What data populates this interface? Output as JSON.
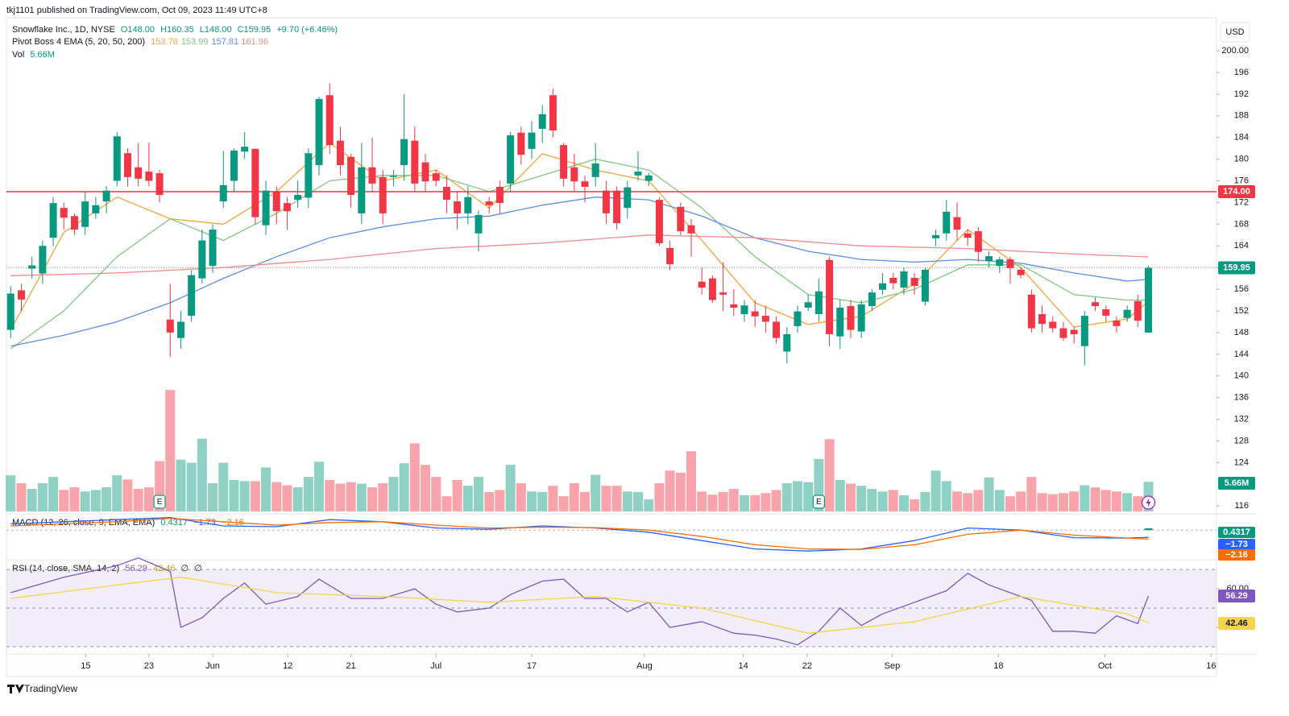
{
  "chart_data": {
    "type": "candlestick",
    "published": "tkj1101 published on TradingView.com, Oct 09, 2023 11:49 UTC+8",
    "symbol": "Snowflake Inc., 1D, NYSE",
    "ohlc_labels": [
      "O148.00",
      "H160.35",
      "L148.00",
      "C159.95"
    ],
    "change_label": "+9.70 (+6.46%)",
    "currency": "USD",
    "brand": "TradingView",
    "up_color": "#089981",
    "down_color": "#f23645",
    "xlim": [
      -0.4,
      113.4
    ],
    "xticks": [
      {
        "value": 7.05,
        "label": "15"
      },
      {
        "value": 13,
        "label": "23"
      },
      {
        "value": 19,
        "label": "Jun"
      },
      {
        "value": 26.06,
        "label": "12"
      },
      {
        "value": 32,
        "label": "21"
      },
      {
        "value": 40,
        "label": "Jul"
      },
      {
        "value": 49,
        "label": "17"
      },
      {
        "value": 59.6,
        "label": "Aug"
      },
      {
        "value": 68.9,
        "label": "14"
      },
      {
        "value": 74.9,
        "label": "22"
      },
      {
        "value": 82.9,
        "label": "Sep"
      },
      {
        "value": 92.9,
        "label": "18"
      },
      {
        "value": 102.9,
        "label": "Oct"
      },
      {
        "value": 112.9,
        "label": "16"
      }
    ],
    "ylim": [
      114.7,
      206.1
    ],
    "yticks": [
      116,
      124,
      128,
      132,
      136,
      140,
      144,
      148,
      152,
      156,
      160,
      164,
      168,
      172,
      176,
      180,
      184,
      188,
      192,
      196,
      {
        "value": 200,
        "label": "200.00"
      }
    ],
    "open": [
      148.5,
      155.8,
      159.8,
      158.9,
      165.5,
      171,
      169.5,
      167.5,
      170,
      172.2,
      176,
      181.1,
      178.5,
      177.7,
      177.4,
      150.4,
      147,
      151.1,
      158,
      160.3,
      172.2,
      176,
      181.4,
      181.9,
      167.8,
      174,
      171.9,
      172.5,
      172.9,
      178.9,
      191.8,
      183.4,
      180.4,
      170,
      178.5,
      176.7,
      176.7,
      178.9,
      183.4,
      179.4,
      177.4,
      174.9,
      172.2,
      170,
      166.3,
      172.2,
      174.9,
      175.5,
      184.9,
      181.9,
      185.6,
      191.8,
      182.6,
      178.5,
      175.9,
      176.7,
      174.2,
      174.2,
      171,
      177,
      176,
      172.5,
      163.6,
      171.2,
      167.8,
      157.4,
      158,
      155.4,
      153.2,
      151.4,
      151.9,
      151.1,
      150,
      144.5,
      149.2,
      152.6,
      151.4,
      161.4,
      147.3,
      152.9,
      148.2,
      152.9,
      155.9,
      158.1,
      156.3,
      158.1,
      153.7,
      165.4,
      166.3,
      169.3,
      166.3,
      166.7,
      161.2,
      160.3,
      161.5,
      159.6,
      155,
      151.4,
      150,
      148.8,
      148.5,
      145.5,
      153.6,
      152.3,
      150.2,
      150.7,
      153.8,
      148
    ],
    "high": [
      156.6,
      157,
      162,
      165,
      173,
      172,
      170,
      174,
      173,
      175,
      185,
      182,
      183,
      183,
      178,
      157,
      152,
      159.5,
      167,
      168,
      181.5,
      182,
      185,
      182,
      176,
      175,
      173,
      176,
      182,
      191.5,
      194,
      186,
      181,
      183,
      184,
      178,
      178,
      192,
      186,
      181,
      178,
      177,
      174,
      175,
      170.5,
      173,
      176,
      185,
      186,
      187,
      190,
      193,
      183,
      181,
      177,
      183,
      176,
      175,
      176,
      181.5,
      177.5,
      173,
      165,
      172,
      169,
      160,
      158.5,
      161,
      156,
      154,
      154,
      153,
      151,
      149,
      153,
      155,
      158,
      162,
      154,
      154,
      154,
      156,
      159,
      159,
      160,
      159,
      160,
      167,
      172.5,
      172,
      167,
      167.5,
      163,
      162,
      162,
      160,
      156,
      153,
      151,
      150,
      149,
      152,
      154.5,
      153,
      151,
      153,
      155,
      160.35
    ],
    "low": [
      147,
      152,
      158,
      157,
      164,
      167,
      166,
      166,
      169,
      170,
      175,
      175,
      175,
      175,
      172,
      143.5,
      145,
      150,
      157,
      159,
      171,
      174,
      180,
      168,
      166,
      168,
      167,
      171,
      171,
      177,
      181,
      177,
      171,
      168,
      174,
      168,
      175,
      176,
      174,
      174,
      175,
      170,
      167,
      168,
      163,
      170,
      170,
      174,
      179,
      180,
      183,
      184,
      175,
      174,
      172,
      175,
      168,
      167,
      169,
      176,
      175,
      164,
      159.5,
      166,
      162,
      155,
      153.5,
      152,
      151,
      150,
      149,
      148,
      146,
      142.3,
      148,
      152,
      150,
      145.5,
      145,
      147,
      147,
      152,
      155,
      156,
      155,
      155,
      153,
      164,
      165,
      165,
      164,
      161,
      160,
      159,
      157,
      158,
      148,
      148,
      148,
      146.5,
      146,
      142,
      152,
      150,
      148,
      150,
      149,
      148
    ],
    "close": [
      155.2,
      154.1,
      160.4,
      164,
      171.9,
      169.2,
      167,
      172.2,
      171.5,
      174.2,
      184.2,
      176.7,
      176.4,
      176,
      173.4,
      148,
      150,
      158.6,
      165,
      167,
      175.2,
      181.6,
      182.3,
      169.3,
      174.2,
      170.4,
      170.4,
      173.4,
      181.1,
      191.1,
      182.6,
      178.9,
      173.4,
      178.5,
      175.5,
      170,
      176.9,
      183.7,
      175.5,
      175.9,
      176,
      172.5,
      170,
      173,
      169.7,
      171.5,
      171.9,
      184.4,
      180.8,
      184.9,
      188.3,
      185.3,
      176.4,
      175.9,
      174.9,
      179.2,
      170,
      168.2,
      174.8,
      177.7,
      177,
      164.5,
      160.6,
      166.7,
      166.3,
      156.3,
      154,
      155,
      152.6,
      153,
      151,
      150,
      147,
      147.7,
      151.9,
      153.6,
      155.6,
      147.7,
      152.6,
      148.5,
      153.2,
      155.4,
      157.1,
      157.1,
      159.3,
      156.6,
      159.6,
      166,
      170.3,
      167,
      165.5,
      162.9,
      162.1,
      161.5,
      159.9,
      158.6,
      148.8,
      149.6,
      148.8,
      147,
      147.7,
      151.1,
      152.9,
      151.1,
      149.2,
      152.2,
      150.2,
      159.95
    ],
    "last_price_label": "159.95",
    "volume_title": "Vol",
    "volume_label": "5.66M",
    "volume": [
      6.9,
      5.4,
      4.3,
      5.4,
      6.6,
      4.1,
      4.6,
      3.8,
      4.1,
      4.6,
      6.9,
      6.1,
      4.3,
      4.6,
      9.6,
      23.2,
      9.9,
      9.3,
      13.9,
      5.4,
      9.3,
      6.0,
      5.8,
      5.8,
      8.4,
      5.6,
      5.0,
      4.6,
      6.6,
      9.5,
      6.0,
      5.3,
      5.6,
      5.3,
      4.6,
      5.4,
      6.6,
      9.2,
      13.0,
      8.9,
      6.6,
      2.9,
      6.0,
      4.9,
      6.6,
      3.7,
      4.1,
      8.9,
      5.4,
      3.8,
      3.7,
      4.9,
      2.9,
      5.4,
      3.7,
      7.0,
      4.9,
      4.9,
      3.8,
      3.7,
      2.3,
      5.4,
      7.8,
      7.4,
      11.5,
      3.8,
      3.2,
      3.7,
      4.3,
      3.1,
      3.1,
      3.5,
      4.1,
      5.4,
      5.8,
      5.6,
      10.0,
      13.8,
      6.0,
      5.3,
      4.9,
      4.3,
      3.8,
      4.1,
      3.1,
      2.3,
      3.7,
      7.8,
      5.8,
      3.8,
      3.5,
      4.1,
      6.5,
      4.1,
      2.9,
      3.8,
      6.6,
      3.5,
      3.3,
      3.5,
      3.8,
      5.0,
      4.6,
      4.1,
      3.8,
      3.5,
      2.9,
      5.66
    ],
    "hline": {
      "value": 174,
      "label": "174.00",
      "color": "#f23645"
    },
    "events": [
      {
        "x": 14,
        "label": "E"
      },
      {
        "x": 76,
        "label": "E"
      }
    ],
    "ema_title": "Pivot Boss 4 EMA (5, 20, 50, 200)",
    "series": [
      {
        "name": "EMA 5",
        "color": "#f5a33a",
        "x": [
          0,
          5,
          10,
          15,
          20,
          25,
          30,
          35,
          40,
          45,
          50,
          55,
          60,
          65,
          70,
          75,
          80,
          85,
          90,
          95,
          100,
          105,
          107
        ],
        "values": [
          148.5,
          166.5,
          173,
          169,
          168,
          174,
          183,
          176,
          178,
          171,
          181,
          178,
          176,
          165,
          153.5,
          149.5,
          151,
          157,
          167,
          160,
          149,
          150.5,
          153.76
        ]
      },
      {
        "name": "EMA 20",
        "color": "#81c784",
        "x": [
          0,
          5,
          10,
          15,
          20,
          25,
          30,
          35,
          40,
          45,
          50,
          55,
          60,
          65,
          70,
          75,
          80,
          85,
          90,
          95,
          100,
          105,
          107
        ],
        "values": [
          145,
          152,
          162,
          169,
          165,
          170,
          176,
          177,
          177,
          174,
          177,
          180,
          178,
          171,
          162,
          155,
          153.5,
          156,
          160.5,
          160.5,
          155,
          154,
          153.99
        ]
      },
      {
        "name": "EMA 50",
        "color": "#5b8fe8",
        "x": [
          0,
          5,
          10,
          15,
          20,
          25,
          30,
          35,
          40,
          45,
          50,
          55,
          60,
          65,
          70,
          75,
          80,
          85,
          90,
          95,
          100,
          105,
          107
        ],
        "values": [
          145.5,
          147.5,
          150,
          153.5,
          158,
          162,
          165.5,
          167.5,
          169,
          169.5,
          171.5,
          173,
          172.5,
          169.5,
          165.5,
          163,
          161.5,
          161,
          161.5,
          160.8,
          159,
          157.5,
          157.81
        ]
      },
      {
        "name": "EMA 200",
        "color": "#f28b8b",
        "x": [
          0,
          10,
          20,
          30,
          40,
          50,
          60,
          70,
          80,
          90,
          100,
          107
        ],
        "values": [
          158.5,
          159,
          160,
          161.5,
          163.5,
          164.5,
          166,
          165.5,
          164,
          163.5,
          162.5,
          161.96
        ]
      }
    ],
    "macd": {
      "title": "MACD (12, 26, close, 9, EMA, EMA)",
      "ylim": [
        -6.5,
        3.5
      ],
      "histogram_x": 107,
      "histogram_last": 0.4317,
      "histogram_color": "#089981",
      "series": [
        {
          "name": "MACD",
          "color": "#2962ff",
          "value_label": "−1.73",
          "x": [
            0,
            5,
            10,
            15,
            20,
            25,
            30,
            35,
            40,
            45,
            50,
            55,
            60,
            65,
            70,
            75,
            80,
            85,
            90,
            95,
            100,
            105,
            107
          ],
          "values": [
            1.5,
            2.0,
            2.5,
            3.0,
            1.0,
            0.8,
            2.5,
            2.0,
            0.5,
            0.2,
            1.0,
            0.5,
            -0.5,
            -2.5,
            -4.5,
            -5.0,
            -4.5,
            -2.5,
            0.5,
            0,
            -1.8,
            -1.9,
            -1.73
          ]
        },
        {
          "name": "Signal",
          "color": "#ff6d00",
          "value_label": "−2.16",
          "x": [
            0,
            5,
            10,
            15,
            20,
            25,
            30,
            35,
            40,
            45,
            50,
            55,
            60,
            65,
            70,
            75,
            80,
            85,
            90,
            95,
            100,
            105,
            107
          ],
          "values": [
            1.0,
            1.5,
            2.0,
            2.8,
            2.0,
            1.2,
            1.8,
            2.0,
            1.2,
            0.5,
            0.7,
            0.6,
            0,
            -1.5,
            -3.5,
            -4.5,
            -4.6,
            -3.5,
            -1,
            0,
            -1.2,
            -1.9,
            -2.16
          ]
        }
      ]
    },
    "rsi": {
      "title": "RSI (14, close, SMA, 14, 2)",
      "extra": [
        "∅",
        "∅"
      ],
      "ylim": [
        27.5,
        74.2
      ],
      "levels": [
        70,
        50,
        30
      ],
      "yticks": [
        {
          "value": 60,
          "label": "60.00"
        },
        {
          "value": 40,
          "label": "40.00"
        }
      ],
      "series": [
        {
          "name": "RSI",
          "color": "#7e57c2",
          "x": [
            0,
            5,
            10,
            12,
            15,
            16,
            18,
            20,
            22,
            24,
            27,
            29,
            32,
            35,
            38,
            40,
            42,
            45,
            47,
            50,
            52,
            54,
            56,
            58,
            60,
            62,
            65,
            68,
            70,
            72,
            74,
            76,
            78,
            80,
            82,
            85,
            88,
            90,
            92,
            94,
            96,
            98,
            100,
            102,
            104,
            106,
            107
          ],
          "values": [
            58,
            66,
            72,
            76,
            69,
            40,
            45,
            55,
            63,
            52,
            56,
            65,
            55,
            55,
            60,
            52,
            48,
            50,
            57,
            64,
            65,
            55,
            55,
            48,
            53,
            40,
            43,
            37,
            36,
            34,
            31,
            38,
            50,
            41,
            47,
            53,
            59,
            68,
            62,
            58,
            54,
            38,
            38,
            37,
            46,
            42,
            56.29
          ]
        },
        {
          "name": "RSI-based MA",
          "color": "#f4d44d",
          "x": [
            0,
            10,
            16,
            25,
            35,
            45,
            55,
            65,
            75,
            85,
            95,
            105,
            107
          ],
          "values": [
            55,
            62,
            66,
            58,
            56,
            53,
            56,
            50,
            37,
            43,
            56,
            47,
            42.46
          ]
        }
      ]
    }
  }
}
